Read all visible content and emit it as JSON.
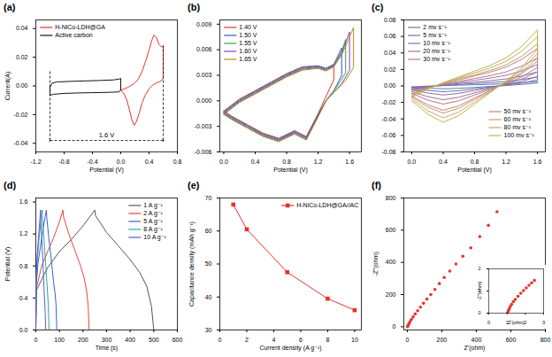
{
  "chart_data": [
    {
      "type": "line",
      "title": "(a)",
      "x_label": "Potential (V)",
      "y_label": "Current(A)",
      "xlim": [
        -1.2,
        0.8
      ],
      "ylim": [
        -0.046,
        0.046
      ],
      "xticks": [
        -1.2,
        -0.8,
        -0.4,
        {
          "value": 0,
          "label": "0.0"
        },
        0.4,
        0.8
      ],
      "yticks": [
        -0.04,
        -0.02,
        {
          "value": 0,
          "label": "0.00"
        },
        0.02,
        0.04
      ],
      "legend": "top-left",
      "annotations": [
        {
          "text": "1.6 V",
          "x": -0.2,
          "y": -0.038
        }
      ],
      "series": [
        {
          "name": "H-NiCo-LDH@GA",
          "color": "#e8312a",
          "x": [
            0.0,
            0.05,
            0.1,
            0.15,
            0.2,
            0.25,
            0.3,
            0.35,
            0.4,
            0.44,
            0.47,
            0.5,
            0.54,
            0.58,
            0.6,
            0.6,
            0.55,
            0.5,
            0.45,
            0.4,
            0.35,
            0.3,
            0.26,
            0.22,
            0.19,
            0.16,
            0.12,
            0.08,
            0.04,
            0.0
          ],
          "values": [
            -0.003,
            -0.002,
            -0.001,
            0.0005,
            0.002,
            0.005,
            0.01,
            0.017,
            0.025,
            0.032,
            0.0355,
            0.034,
            0.029,
            0.027,
            0.028,
            0.005,
            0.003,
            0.002,
            0.0005,
            -0.002,
            -0.006,
            -0.012,
            -0.019,
            -0.025,
            -0.0275,
            -0.024,
            -0.016,
            -0.009,
            -0.005,
            -0.003
          ]
        },
        {
          "name": "Active carbon",
          "color": "#111111",
          "x": [
            -1.0,
            -0.97,
            -0.9,
            -0.7,
            -0.5,
            -0.3,
            -0.1,
            -0.02,
            0.0,
            0.0,
            -0.03,
            -0.2,
            -0.4,
            -0.6,
            -0.8,
            -0.95,
            -1.0,
            -1.0
          ],
          "values": [
            -0.001,
            0.002,
            0.0028,
            0.0032,
            0.0035,
            0.0038,
            0.0042,
            0.0048,
            0.0052,
            -0.003,
            -0.0042,
            -0.0045,
            -0.0047,
            -0.0049,
            -0.0052,
            -0.0058,
            -0.0065,
            -0.001
          ]
        }
      ]
    },
    {
      "type": "line",
      "title": "(b)",
      "x_label": "Potential (V)",
      "xlim": [
        -0.05,
        1.75
      ],
      "ylim": [
        -0.006,
        0.0095
      ],
      "xticks": [
        {
          "value": 0,
          "label": "0.0"
        },
        0.4,
        0.8,
        1.2,
        1.6
      ],
      "yticks": [
        -0.006,
        -0.003,
        {
          "value": 0,
          "label": "0.000"
        },
        0.003,
        0.006,
        0.009
      ],
      "legend": "top-left",
      "series": [
        {
          "name": "1.40 V",
          "color": "#e8312a",
          "x": [
            0,
            0.2,
            0.4,
            0.6,
            0.8,
            1.0,
            1.2,
            1.3,
            1.4,
            1.4,
            1.3,
            1.2,
            1.05,
            0.9,
            0.7,
            0.5,
            0.3,
            0.1,
            0
          ],
          "values": [
            -0.0012,
            0.0002,
            0.0012,
            0.0022,
            0.0032,
            0.004,
            0.0041,
            0.0038,
            0.0042,
            0.0025,
            0.0005,
            -0.0015,
            -0.0042,
            -0.0035,
            -0.0044,
            -0.0038,
            -0.0028,
            -0.0018,
            -0.0012
          ]
        },
        {
          "name": "1.50 V",
          "color": "#2a55d6",
          "x": [
            0,
            0.2,
            0.4,
            0.6,
            0.8,
            1.0,
            1.2,
            1.3,
            1.4,
            1.5,
            1.5,
            1.4,
            1.3,
            1.2,
            1.05,
            0.9,
            0.7,
            0.5,
            0.3,
            0.1,
            0
          ],
          "values": [
            -0.0013,
            0.0001,
            0.0011,
            0.0021,
            0.0031,
            0.0039,
            0.0041,
            0.0038,
            0.0043,
            0.0062,
            0.003,
            0.0012,
            0.0,
            -0.0016,
            -0.0043,
            -0.0036,
            -0.0045,
            -0.0039,
            -0.0029,
            -0.0019,
            -0.0013
          ]
        },
        {
          "name": "1.55 V",
          "color": "#2aa84a",
          "x": [
            0,
            0.2,
            0.4,
            0.6,
            0.8,
            1.0,
            1.2,
            1.3,
            1.4,
            1.5,
            1.55,
            1.55,
            1.45,
            1.3,
            1.2,
            1.05,
            0.9,
            0.7,
            0.5,
            0.3,
            0.1,
            0
          ],
          "values": [
            -0.0014,
            0.0,
            0.001,
            0.002,
            0.003,
            0.0038,
            0.004,
            0.0037,
            0.0042,
            0.0058,
            0.0072,
            0.0033,
            0.0018,
            0.0,
            -0.0017,
            -0.0044,
            -0.0037,
            -0.0046,
            -0.004,
            -0.003,
            -0.002,
            -0.0014
          ]
        },
        {
          "name": "1.60 V",
          "color": "#8a3fb5",
          "x": [
            0,
            0.2,
            0.4,
            0.6,
            0.8,
            1.0,
            1.2,
            1.3,
            1.4,
            1.5,
            1.6,
            1.6,
            1.5,
            1.3,
            1.2,
            1.05,
            0.9,
            0.7,
            0.5,
            0.3,
            0.1,
            0
          ],
          "values": [
            -0.0015,
            -0.0001,
            0.0009,
            0.0019,
            0.0029,
            0.0037,
            0.0039,
            0.0036,
            0.0041,
            0.0056,
            0.0081,
            0.0036,
            0.002,
            0.0,
            -0.0018,
            -0.0045,
            -0.0038,
            -0.0047,
            -0.0041,
            -0.0031,
            -0.0021,
            -0.0015
          ]
        },
        {
          "name": "1.65 V",
          "color": "#b88a1e",
          "x": [
            0,
            0.2,
            0.4,
            0.6,
            0.8,
            1.0,
            1.2,
            1.3,
            1.4,
            1.5,
            1.6,
            1.65,
            1.65,
            1.55,
            1.3,
            1.2,
            1.05,
            0.9,
            0.7,
            0.5,
            0.3,
            0.1,
            0
          ],
          "values": [
            -0.0016,
            -0.0002,
            0.0008,
            0.0018,
            0.0028,
            0.0036,
            0.0038,
            0.0035,
            0.004,
            0.0054,
            0.0075,
            0.0086,
            0.0039,
            0.0024,
            0.0,
            -0.0019,
            -0.0046,
            -0.0039,
            -0.0048,
            -0.0042,
            -0.0032,
            -0.0022,
            -0.0016
          ]
        }
      ]
    },
    {
      "type": "line",
      "title": "(c)",
      "x_label": "Potential (V)",
      "xlim": [
        -0.1,
        1.7
      ],
      "ylim": [
        -0.08,
        0.08
      ],
      "xticks": [
        {
          "value": 0,
          "label": "0.0"
        },
        0.4,
        0.8,
        1.2,
        1.6
      ],
      "yticks": [
        -0.08,
        -0.06,
        -0.04,
        -0.02,
        {
          "value": 0,
          "label": "0.00"
        },
        0.02,
        0.04,
        0.06,
        0.08
      ],
      "legend": "top-left",
      "x": [
        0,
        0.2,
        0.4,
        0.6,
        0.8,
        1.0,
        1.2,
        1.4,
        1.6,
        1.6,
        1.4,
        1.2,
        1.0,
        0.8,
        0.6,
        0.4,
        0.2,
        0
      ],
      "series": [
        {
          "name": "2 mv s⁻¹",
          "color": "#5b7db1",
          "values": [
            -0.0011,
            -0.0003,
            0.0003,
            0.0009,
            0.0014,
            0.002,
            0.0027,
            0.0038,
            0.0054,
            0.0036,
            0.0018,
            0.0005,
            -0.0006,
            -0.0018,
            -0.0029,
            -0.0035,
            -0.0027,
            -0.0014
          ]
        },
        {
          "name": "5 mv s⁻¹",
          "color": "#6f6fb0",
          "values": [
            -0.0022,
            -0.0006,
            0.0006,
            0.0018,
            0.0029,
            0.004,
            0.0054,
            0.0077,
            0.0109,
            0.0072,
            0.0035,
            0.001,
            -0.0013,
            -0.0035,
            -0.0058,
            -0.007,
            -0.0054,
            -0.0029
          ]
        },
        {
          "name": "10 mv s⁻¹",
          "color": "#8a6d9e",
          "values": [
            -0.0035,
            -0.001,
            0.001,
            0.0028,
            0.0045,
            0.0063,
            0.0085,
            0.012,
            0.017,
            0.0113,
            0.0055,
            0.0015,
            -0.002,
            -0.0055,
            -0.009,
            -0.011,
            -0.0085,
            -0.0045
          ]
        },
        {
          "name": "20 mv s⁻¹",
          "color": "#a0729a",
          "values": [
            -0.0053,
            -0.0015,
            0.0015,
            0.0042,
            0.0068,
            0.0095,
            0.0129,
            0.0182,
            0.0258,
            0.0171,
            0.0084,
            0.0023,
            -0.003,
            -0.0084,
            -0.0137,
            -0.0167,
            -0.0129,
            -0.0068
          ]
        },
        {
          "name": "30 mv s⁻¹",
          "color": "#b37a8c",
          "values": [
            -0.007,
            -0.002,
            0.002,
            0.0055,
            0.009,
            0.0125,
            0.017,
            0.024,
            0.034,
            0.0225,
            0.011,
            0.003,
            -0.004,
            -0.011,
            -0.018,
            -0.022,
            -0.017,
            -0.009
          ]
        },
        {
          "name": "50 mv s⁻¹",
          "color": "#c0857e",
          "values": [
            -0.0094,
            -0.0027,
            0.0027,
            0.0074,
            0.0121,
            0.0168,
            0.0228,
            0.0322,
            0.0456,
            0.0302,
            0.0147,
            0.004,
            -0.0054,
            -0.0147,
            -0.0241,
            -0.0295,
            -0.0228,
            -0.0121
          ]
        },
        {
          "name": "60 mv s⁻¹",
          "color": "#c99a6e",
          "values": [
            -0.0105,
            -0.003,
            0.003,
            0.0083,
            0.0135,
            0.0188,
            0.0255,
            0.036,
            0.051,
            0.0338,
            0.0165,
            0.0045,
            -0.006,
            -0.0165,
            -0.027,
            -0.033,
            -0.0255,
            -0.0135
          ]
        },
        {
          "name": "80 mv s⁻¹",
          "color": "#c9a95e",
          "values": [
            -0.0123,
            -0.0035,
            0.0035,
            0.0097,
            0.0158,
            0.022,
            0.0299,
            0.0422,
            0.0598,
            0.0396,
            0.0194,
            0.0053,
            -0.007,
            -0.0194,
            -0.0317,
            -0.0387,
            -0.0299,
            -0.0158
          ]
        },
        {
          "name": "100 mv s⁻¹",
          "color": "#b8b84f",
          "values": [
            -0.014,
            -0.004,
            0.004,
            0.011,
            0.018,
            0.025,
            0.034,
            0.048,
            0.068,
            0.045,
            0.022,
            0.006,
            -0.008,
            -0.022,
            -0.036,
            -0.044,
            -0.034,
            -0.018
          ]
        }
      ]
    },
    {
      "type": "line",
      "title": "(d)",
      "x_label": "Time (s)",
      "y_label": "Potential (V)",
      "xlim": [
        0,
        600
      ],
      "ylim": [
        0,
        1.65
      ],
      "xticks": [
        0,
        100,
        200,
        300,
        400,
        500,
        600
      ],
      "yticks": [
        {
          "value": 0,
          "label": "0.0"
        },
        0.4,
        0.8,
        1.2,
        1.6
      ],
      "legend": "top-right",
      "series": [
        {
          "name": "1 A g⁻¹",
          "color": "#555555",
          "x": [
            0,
            3,
            50,
            100,
            150,
            200,
            250,
            253,
            300,
            350,
            400,
            440,
            470,
            490,
            500
          ],
          "values": [
            0,
            0.5,
            0.78,
            0.98,
            1.13,
            1.3,
            1.5,
            1.43,
            1.22,
            1.05,
            0.88,
            0.72,
            0.55,
            0.3,
            0
          ]
        },
        {
          "name": "2 A g⁻¹",
          "color": "#e8453c",
          "x": [
            0,
            2,
            25,
            50,
            75,
            100,
            115,
            117,
            140,
            165,
            190,
            205,
            215,
            222,
            226
          ],
          "values": [
            0,
            0.52,
            0.8,
            0.98,
            1.15,
            1.35,
            1.5,
            1.42,
            1.2,
            1.0,
            0.8,
            0.65,
            0.5,
            0.3,
            0
          ]
        },
        {
          "name": "5 A g⁻¹",
          "color": "#3b5fc9",
          "x": [
            0,
            1,
            10,
            20,
            30,
            40,
            45,
            46,
            55,
            65,
            75,
            82,
            86,
            89
          ],
          "values": [
            0,
            0.55,
            0.85,
            1.05,
            1.25,
            1.42,
            1.5,
            1.42,
            1.15,
            0.9,
            0.6,
            0.45,
            0.3,
            0
          ]
        },
        {
          "name": "8 A g⁻¹",
          "color": "#2fa3a8",
          "x": [
            0,
            1,
            7,
            14,
            21,
            27,
            28,
            34,
            41,
            48,
            53,
            56
          ],
          "values": [
            0,
            0.58,
            0.9,
            1.15,
            1.35,
            1.5,
            1.42,
            1.15,
            0.85,
            0.55,
            0.3,
            0
          ]
        },
        {
          "name": "10 A g⁻¹",
          "color": "#5b5bd6",
          "x": [
            0,
            1,
            5,
            10,
            15,
            20,
            21,
            25,
            30,
            35,
            40,
            42
          ],
          "values": [
            0,
            0.6,
            0.9,
            1.1,
            1.3,
            1.5,
            1.42,
            1.15,
            0.85,
            0.5,
            0.2,
            0
          ]
        }
      ]
    },
    {
      "type": "line",
      "title": "(e)",
      "x_label": "Current density (A g⁻¹)",
      "y_label": "Capacitance density (mAh g⁻¹)",
      "xlim": [
        0,
        10.5
      ],
      "ylim": [
        30,
        70
      ],
      "xticks": [
        0,
        2,
        4,
        6,
        8,
        10
      ],
      "yticks": [
        30,
        40,
        50,
        60,
        70
      ],
      "legend": "top-right",
      "x": [
        1,
        2,
        5,
        8,
        10
      ],
      "series": [
        {
          "name": "H-NiCo-LDH@GA//AC",
          "color": "#e8312a",
          "marker": "square",
          "values": [
            68,
            60.5,
            47.5,
            39.5,
            36
          ]
        }
      ]
    },
    {
      "type": "scatter",
      "title": "(f)",
      "x_label": "Z'(ohm)",
      "y_label": "-Z''(ohm)",
      "xlim": [
        -20,
        800
      ],
      "ylim": [
        -20,
        800
      ],
      "xticks": [
        0,
        200,
        400,
        600,
        800
      ],
      "yticks": [
        0,
        200,
        400,
        600,
        800
      ],
      "x": [
        1.5,
        3,
        6,
        10,
        16,
        24,
        34,
        46,
        60,
        76,
        94,
        114,
        136,
        160,
        186,
        214,
        246,
        282,
        322,
        368,
        420,
        470,
        520
      ],
      "series": [
        {
          "color": "#e8312a",
          "marker": "circle",
          "values": [
            0.5,
            5,
            12,
            20,
            32,
            46,
            62,
            80,
            100,
            122,
            146,
            172,
            200,
            232,
            268,
            306,
            346,
            390,
            438,
            490,
            560,
            630,
            715
          ]
        }
      ],
      "inset": {
        "type": "scatter",
        "x_label": "Z'(ohm)",
        "y_label": "-Z''(ohm)",
        "xlim": [
          0,
          3
        ],
        "ylim": [
          0,
          2
        ],
        "xticks": [
          0,
          1,
          2,
          3
        ],
        "yticks": [
          0,
          1,
          2
        ],
        "x": [
          1.02,
          1.05,
          1.08,
          1.12,
          1.18,
          1.25,
          1.35,
          1.45,
          1.6,
          1.75,
          1.9,
          2.05,
          2.2,
          2.35,
          2.5
        ],
        "series": [
          {
            "color": "#e8312a",
            "marker": "circle",
            "values": [
              0,
              0.05,
              0.12,
              0.2,
              0.3,
              0.4,
              0.52,
              0.62,
              0.76,
              0.9,
              1.02,
              1.14,
              1.26,
              1.37,
              1.48
            ]
          }
        ]
      }
    }
  ]
}
